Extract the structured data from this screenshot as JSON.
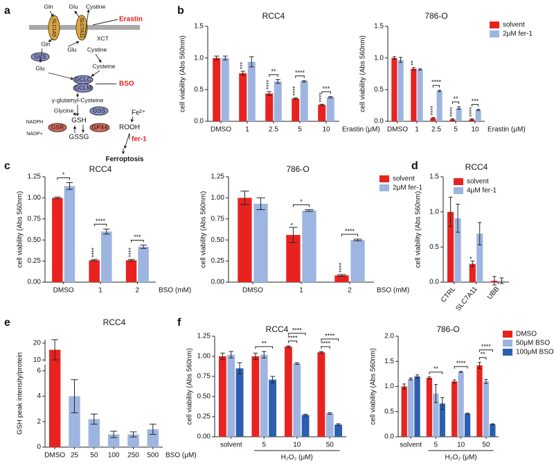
{
  "panel_labels": [
    "a",
    "b",
    "c",
    "d",
    "e",
    "f"
  ],
  "diagram": {
    "nodes": [
      {
        "label": "Gln"
      },
      {
        "label": "SLC1A5"
      },
      {
        "label": "Glu"
      },
      {
        "label": "Cystine"
      },
      {
        "label": "SLC7A11"
      },
      {
        "label": "XCT"
      },
      {
        "label": "Erastin"
      },
      {
        "label": "Gln"
      },
      {
        "label": "GLS"
      },
      {
        "label": "Glu"
      },
      {
        "label": "Glu"
      },
      {
        "label": "Cystine"
      },
      {
        "label": "Cysteine"
      },
      {
        "label": "GCLC"
      },
      {
        "label": "GCLM"
      },
      {
        "label": "BSO"
      },
      {
        "label": "γ-glutamyl-Cysteine"
      },
      {
        "label": "Glycine"
      },
      {
        "label": "GSS"
      },
      {
        "label": "GSH"
      },
      {
        "label": "NADPH"
      },
      {
        "label": "NADP+"
      },
      {
        "label": "GSR"
      },
      {
        "label": "GPX4"
      },
      {
        "label": "ROOH"
      },
      {
        "label": "Fe²⁺"
      },
      {
        "label": "GSSG"
      },
      {
        "label": "fer-1"
      },
      {
        "label": "Ferroptosis"
      }
    ]
  },
  "chart_data": [
    {
      "type": "bar",
      "title": "RCC4",
      "ylabel": "cell viability (Abs 560nm)",
      "xlabel": "Erastin (μM)",
      "xlabel_position": "right",
      "categories": [
        "DMSO",
        "1",
        "2.5",
        "5",
        "10"
      ],
      "ylim": [
        0,
        1.5
      ],
      "yticks": [
        {
          "value": 0,
          "label": "0.0"
        },
        0.5,
        {
          "value": 1,
          "label": "1.0"
        },
        1.5
      ],
      "series": [
        {
          "color": "#e8231f",
          "values": [
            1.0,
            0.76,
            0.44,
            0.36,
            0.26
          ],
          "errors": [
            0.03,
            0.03,
            0.03,
            0.01,
            0.01
          ],
          "significance": [
            null,
            "***",
            "****",
            "****",
            "****"
          ]
        },
        {
          "color": "#9db5e0",
          "values": [
            1.0,
            0.94,
            0.63,
            0.63,
            0.38
          ],
          "errors": [
            0.03,
            0.08,
            0.03,
            0.01,
            0.01
          ]
        }
      ],
      "comparisons": [
        null,
        null,
        "**",
        "****",
        "***"
      ]
    },
    {
      "type": "bar",
      "title": "786-O",
      "ylabel": "cell viability (Abs 560nm)",
      "xlabel": "Erastin (μM)",
      "xlabel_position": "right",
      "legend": "outside right",
      "categories": [
        "DMSO",
        "1",
        "2.5",
        "5",
        "10"
      ],
      "ylim": [
        0,
        1.5
      ],
      "yticks": [
        {
          "value": 0,
          "label": "0.0"
        },
        0.5,
        {
          "value": 1,
          "label": "1.0"
        },
        1.5
      ],
      "series": [
        {
          "name": "solvent",
          "color": "#e8231f",
          "values": [
            1.0,
            0.83,
            0.05,
            0.03,
            0.03
          ],
          "errors": [
            0.02,
            0.02,
            0.01,
            0.01,
            0.01
          ],
          "significance": [
            null,
            "**",
            "****",
            "****",
            "****"
          ]
        },
        {
          "name": "2μM fer-1",
          "color": "#9db5e0",
          "values": [
            0.97,
            0.82,
            0.48,
            0.21,
            0.18
          ],
          "errors": [
            0.04,
            0.01,
            0.01,
            0.02,
            0.01
          ]
        }
      ],
      "comparisons": [
        null,
        null,
        "****",
        "**",
        "***"
      ]
    },
    {
      "type": "bar",
      "title": "RCC4",
      "ylabel": "cell viability (Abs 560nm)",
      "xlabel": "BSO (mM)",
      "xlabel_position": "right",
      "categories": [
        "DMSO",
        "1",
        "2"
      ],
      "ylim": [
        0,
        1.25
      ],
      "yticks": [
        {
          "value": 0,
          "label": "0.00"
        },
        0.25,
        {
          "value": 0.5,
          "label": "0.50"
        },
        0.75,
        {
          "value": 1,
          "label": "1.00"
        },
        1.25
      ],
      "series": [
        {
          "color": "#e8231f",
          "values": [
            1.0,
            0.26,
            0.26
          ],
          "errors": [
            0.01,
            0.01,
            0.01
          ],
          "significance": [
            null,
            "****",
            "****"
          ]
        },
        {
          "color": "#9db5e0",
          "values": [
            1.14,
            0.6,
            0.42
          ],
          "errors": [
            0.04,
            0.03,
            0.02
          ]
        }
      ],
      "comparisons": [
        "*",
        "****",
        "***"
      ]
    },
    {
      "type": "bar",
      "title": "786-O",
      "ylabel": "cell viability (Abs 560nm)",
      "xlabel": "BSO (mM)",
      "xlabel_position": "right",
      "legend": "upper right",
      "categories": [
        "DMSO",
        "1",
        "2"
      ],
      "ylim": [
        0,
        1.25
      ],
      "yticks": [
        {
          "value": 0,
          "label": "0.00"
        },
        0.25,
        {
          "value": 0.5,
          "label": "0.50"
        },
        0.75,
        {
          "value": 1,
          "label": "1.00"
        },
        1.25
      ],
      "series": [
        {
          "name": "solvent",
          "color": "#e8231f",
          "values": [
            1.0,
            0.56,
            0.08
          ],
          "errors": [
            0.08,
            0.09,
            0.01
          ],
          "significance": [
            null,
            "*",
            "****"
          ]
        },
        {
          "name": "2μM fer-1",
          "color": "#9db5e0",
          "values": [
            0.93,
            0.85,
            0.5
          ],
          "errors": [
            0.07,
            0.01,
            0.01
          ]
        }
      ],
      "comparisons": [
        null,
        "*",
        "****"
      ]
    },
    {
      "type": "bar",
      "title": "RCC4",
      "ylabel": "cell viability (Abs 560nm)",
      "legend": "upper right",
      "rotate_xticks": true,
      "categories": [
        "CTRL",
        "SLC7A11",
        "UBB"
      ],
      "ylim": [
        0,
        1.5
      ],
      "yticks": [
        {
          "value": 0,
          "label": "0.0"
        },
        0.5,
        {
          "value": 1,
          "label": "1.0"
        },
        1.5
      ],
      "series": [
        {
          "name": "solvent",
          "color": "#e8231f",
          "values": [
            1.0,
            0.26,
            0.02
          ],
          "errors": [
            0.21,
            0.04,
            0.06
          ],
          "significance": [
            null,
            "*",
            null
          ]
        },
        {
          "name": "4μM fer-1",
          "color": "#9db5e0",
          "values": [
            0.91,
            0.69,
            0.02
          ],
          "errors": [
            0.2,
            0.16,
            0.04
          ]
        }
      ]
    },
    {
      "type": "bar",
      "title": "RCC4",
      "ylabel": "GSH peak intensity/protein",
      "xlabel": "BSO (μM)",
      "xlabel_position": "right",
      "categories": [
        "DMSO",
        "25",
        "50",
        "100",
        "250",
        "500"
      ],
      "ylim": [
        0,
        22
      ],
      "ybreak": [
        6.5,
        9
      ],
      "yticks": [
        0,
        2,
        4,
        6,
        10,
        20
      ],
      "series": [
        {
          "colors": [
            "#e8231f",
            "#9db5e0",
            "#9db5e0",
            "#9db5e0",
            "#9db5e0",
            "#9db5e0"
          ],
          "values": [
            16,
            4.0,
            2.2,
            1.0,
            1.0,
            1.4
          ],
          "errors": [
            6,
            1.3,
            0.4,
            0.25,
            0.2,
            0.4
          ]
        }
      ]
    },
    {
      "type": "bar",
      "title": "RCC4",
      "ylabel": "cell viability (Abs 560nm)",
      "xlabel": "H₂O₂ (μM)",
      "xlabel_position": "below",
      "categories": [
        "solvent",
        "5",
        "10",
        "50"
      ],
      "ylim": [
        0,
        1.25
      ],
      "yticks": [
        {
          "value": 0,
          "label": "0.00"
        },
        0.25,
        {
          "value": 0.5,
          "label": "0.50"
        },
        0.75,
        {
          "value": 1,
          "label": "1.00"
        },
        1.25
      ],
      "series": [
        {
          "color": "#e8231f",
          "values": [
            1.0,
            1.0,
            1.12,
            1.05
          ],
          "errors": [
            0.04,
            0.04,
            0.01,
            0.01
          ]
        },
        {
          "color": "#9db5e0",
          "values": [
            1.02,
            1.02,
            0.91,
            0.29
          ],
          "errors": [
            0.04,
            0.04,
            0.01,
            0.01
          ]
        },
        {
          "color": "#2c5fb0",
          "values": [
            0.85,
            0.71,
            0.27,
            0.15
          ],
          "errors": [
            0.07,
            0.04,
            0.01,
            0.01
          ]
        }
      ],
      "comparisons": [
        null,
        [
          "**"
        ],
        [
          "****",
          "****"
        ],
        [
          "****",
          "****"
        ]
      ]
    },
    {
      "type": "bar",
      "title": "786-O",
      "ylabel": "cell viability (Abs 560nm)",
      "xlabel": "H₂O₂ (μM)",
      "xlabel_position": "below",
      "legend": "outside right",
      "categories": [
        "solvent",
        "5",
        "10",
        "50"
      ],
      "ylim": [
        0,
        2
      ],
      "yticks": [
        {
          "value": 0,
          "label": "0.0"
        },
        0.5,
        {
          "value": 1,
          "label": "1.0"
        },
        1.5,
        {
          "value": 2,
          "label": "2.0"
        }
      ],
      "series": [
        {
          "name": "DMSO",
          "color": "#e8231f",
          "values": [
            1.0,
            1.17,
            1.1,
            1.42
          ],
          "errors": [
            0.05,
            0.02,
            0.03,
            0.06
          ]
        },
        {
          "name": "50μM BSO",
          "color": "#9db5e0",
          "values": [
            1.15,
            0.86,
            1.29,
            1.1
          ],
          "errors": [
            0.02,
            0.18,
            0.01,
            0.04
          ]
        },
        {
          "name": "100μM BSO",
          "color": "#2c5fb0",
          "values": [
            1.2,
            0.66,
            0.46,
            0.25
          ],
          "errors": [
            0.03,
            0.12,
            0.01,
            0.01
          ]
        }
      ],
      "comparisons": [
        null,
        [
          "**"
        ],
        [
          "****"
        ],
        [
          "**",
          "****"
        ]
      ]
    }
  ]
}
